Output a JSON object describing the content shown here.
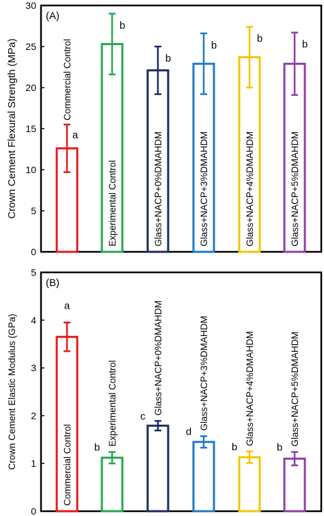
{
  "chart_data": [
    {
      "type": "bar",
      "panel_label": "(A)",
      "ylabel": "Crown Cement Flexural Strength (MPa)",
      "ylim": [
        0,
        30
      ],
      "yticks": [
        0,
        5,
        10,
        15,
        20,
        25,
        30
      ],
      "categories": [
        "Commercial Control",
        "Experimental Control",
        "Glass+NACP+0%DMAHDM",
        "Glass+NACP+3%DMAHDM",
        "Glass+NACP+4%DMAHDM",
        "Glass+NACP+5%DMAHDM"
      ],
      "values": [
        12.6,
        25.3,
        22.1,
        22.9,
        23.7,
        22.9
      ],
      "errors": [
        2.9,
        3.7,
        2.9,
        3.7,
        3.7,
        3.8
      ],
      "letters": [
        "a",
        "b",
        "b",
        "b",
        "b",
        "b"
      ],
      "colors": [
        "#e31a1c",
        "#22a84a",
        "#1a2a5e",
        "#1f78c8",
        "#f5c400",
        "#8e3ca8"
      ],
      "grid": false,
      "legend": "none"
    },
    {
      "type": "bar",
      "panel_label": "(B)",
      "ylabel": "Crown Cement Elastic Modulus (GPa)",
      "ylim": [
        0,
        5
      ],
      "yticks": [
        0,
        1,
        2,
        3,
        4,
        5
      ],
      "categories": [
        "Commercial Control",
        "Experimental Control",
        "Glass+NACP+0%DMAHDM",
        "Glass+NACP+3%DMAHDM",
        "Glass+NACP+4%DMAHDM",
        "Glass+NACP+5%DMAHDM"
      ],
      "values": [
        3.65,
        1.12,
        1.79,
        1.45,
        1.13,
        1.1
      ],
      "errors": [
        0.3,
        0.12,
        0.1,
        0.12,
        0.12,
        0.14
      ],
      "letters": [
        "a",
        "b",
        "c",
        "d",
        "b",
        "b"
      ],
      "colors": [
        "#e31a1c",
        "#22a84a",
        "#1a2a5e",
        "#1f78c8",
        "#f5c400",
        "#8e3ca8"
      ],
      "grid": false,
      "legend": "none"
    }
  ]
}
